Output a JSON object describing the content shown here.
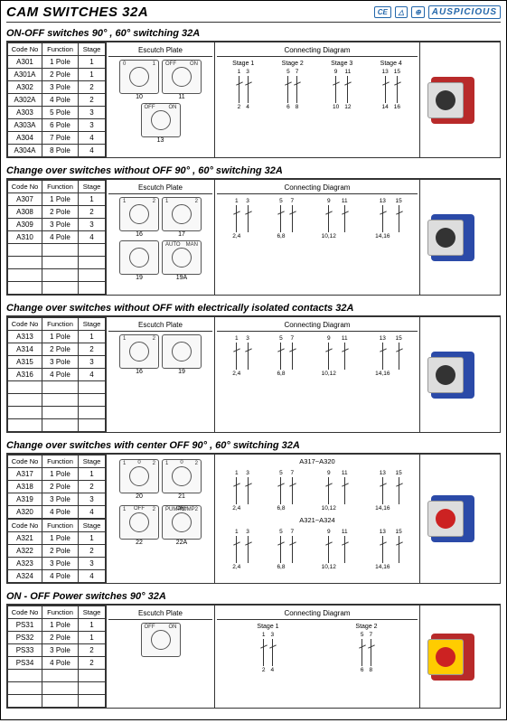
{
  "page_title": "CAM SWITCHES  32A",
  "brand": "AUSPICIOUS",
  "cert_logos": [
    "CE",
    "△",
    "⊕"
  ],
  "column_headers": {
    "code": "Code No",
    "func": "Function",
    "stage": "Stage",
    "escutch": "Escutch Plate",
    "diagram": "Connecting Diagram"
  },
  "colors": {
    "body_blue": "#2b4aa8",
    "body_red": "#b82a2a",
    "face_gray": "#d8d8d8",
    "knob_black": "#222",
    "knob_red": "#c92828",
    "face_yellow": "#ffcc00",
    "brand_blue": "#2266aa"
  },
  "sections": [
    {
      "title": "ON-OFF switches  90° , 60° switching  32A",
      "rows": [
        {
          "code": "A301",
          "func": "1 Pole",
          "stage": "1"
        },
        {
          "code": "A301A",
          "func": "2 Pole",
          "stage": "1"
        },
        {
          "code": "A302",
          "func": "3 Pole",
          "stage": "2"
        },
        {
          "code": "A302A",
          "func": "4 Pole",
          "stage": "2"
        },
        {
          "code": "A303",
          "func": "5 Pole",
          "stage": "3"
        },
        {
          "code": "A303A",
          "func": "6 Pole",
          "stage": "3"
        },
        {
          "code": "A304",
          "func": "7 Pole",
          "stage": "4"
        },
        {
          "code": "A304A",
          "func": "8 Pole",
          "stage": "4"
        }
      ],
      "empty_rows": 0,
      "plates": [
        {
          "num": "10",
          "tl": "0",
          "tr": "1"
        },
        {
          "num": "11",
          "tl": "OFF",
          "tr": "ON"
        },
        {
          "num": "13",
          "tl": "OFF",
          "tr": "ON"
        }
      ],
      "stages": [
        {
          "label": "Stage 1",
          "pins": [
            [
              "1",
              "2"
            ],
            [
              "3",
              "4"
            ]
          ]
        },
        {
          "label": "Stage 2",
          "pins": [
            [
              "5",
              "6"
            ],
            [
              "7",
              "8"
            ]
          ]
        },
        {
          "label": "Stage 3",
          "pins": [
            [
              "9",
              "10"
            ],
            [
              "11",
              "12"
            ]
          ]
        },
        {
          "label": "Stage 4",
          "pins": [
            [
              "13",
              "14"
            ],
            [
              "15",
              "16"
            ]
          ]
        }
      ],
      "photo": {
        "body_color": "#b82a2a",
        "face": "gray",
        "knob": "black"
      }
    },
    {
      "title": "Change over switches without OFF  90° , 60° switching  32A",
      "rows": [
        {
          "code": "A307",
          "func": "1 Pole",
          "stage": "1"
        },
        {
          "code": "A308",
          "func": "2 Pole",
          "stage": "2"
        },
        {
          "code": "A309",
          "func": "3 Pole",
          "stage": "3"
        },
        {
          "code": "A310",
          "func": "4 Pole",
          "stage": "4"
        }
      ],
      "empty_rows": 4,
      "plates": [
        {
          "num": "16",
          "tl": "1",
          "tr": "2"
        },
        {
          "num": "17",
          "tl": "1",
          "tr": "2"
        },
        {
          "num": "19",
          "tl": "",
          "tr": ""
        },
        {
          "num": "19A",
          "tl": "AUTO",
          "tr": "MAN"
        }
      ],
      "stages": [
        {
          "label": "",
          "pins": [
            [
              "1",
              "2,4"
            ],
            [
              "3",
              ""
            ]
          ]
        },
        {
          "label": "",
          "pins": [
            [
              "5",
              "6,8"
            ],
            [
              "7",
              ""
            ]
          ]
        },
        {
          "label": "",
          "pins": [
            [
              "9",
              "10,12"
            ],
            [
              "11",
              ""
            ]
          ]
        },
        {
          "label": "",
          "pins": [
            [
              "13",
              "14,16"
            ],
            [
              "15",
              ""
            ]
          ]
        }
      ],
      "photo": {
        "body_color": "#2b4aa8",
        "face": "gray",
        "knob": "black"
      }
    },
    {
      "title": "Change over switches without OFF with electrically isolated contacts  32A",
      "rows": [
        {
          "code": "A313",
          "func": "1 Pole",
          "stage": "1"
        },
        {
          "code": "A314",
          "func": "2 Pole",
          "stage": "2"
        },
        {
          "code": "A315",
          "func": "3 Pole",
          "stage": "3"
        },
        {
          "code": "A316",
          "func": "4 Pole",
          "stage": "4"
        }
      ],
      "empty_rows": 4,
      "plates": [
        {
          "num": "16",
          "tl": "1",
          "tr": "2"
        },
        {
          "num": "19",
          "tl": "",
          "tr": ""
        }
      ],
      "stages": [
        {
          "label": "",
          "pins": [
            [
              "1",
              "2,4"
            ],
            [
              "3",
              ""
            ]
          ]
        },
        {
          "label": "",
          "pins": [
            [
              "5",
              "6,8"
            ],
            [
              "7",
              ""
            ]
          ]
        },
        {
          "label": "",
          "pins": [
            [
              "9",
              "10,12"
            ],
            [
              "11",
              ""
            ]
          ]
        },
        {
          "label": "",
          "pins": [
            [
              "13",
              "14,16"
            ],
            [
              "15",
              ""
            ]
          ]
        }
      ],
      "photo": {
        "body_color": "#2b4aa8",
        "face": "gray",
        "knob": "black"
      }
    },
    {
      "title": "Change over switches with center OFF  90° , 60°  switching  32A",
      "groups": [
        {
          "rows": [
            {
              "code": "A317",
              "func": "1 Pole",
              "stage": "1"
            },
            {
              "code": "A318",
              "func": "2 Pole",
              "stage": "2"
            },
            {
              "code": "A319",
              "func": "3 Pole",
              "stage": "3"
            },
            {
              "code": "A320",
              "func": "4 Pole",
              "stage": "4"
            }
          ],
          "plates": [
            {
              "num": "20",
              "tl": "1",
              "tc": "0",
              "tr": "2"
            },
            {
              "num": "21",
              "tl": "1",
              "tc": "0",
              "tr": "2"
            }
          ],
          "range": "A317~A320",
          "stages": [
            {
              "label": "",
              "pins": [
                [
                  "1",
                  "2,4"
                ],
                [
                  "3",
                  ""
                ]
              ]
            },
            {
              "label": "",
              "pins": [
                [
                  "5",
                  "6,8"
                ],
                [
                  "7",
                  ""
                ]
              ]
            },
            {
              "label": "",
              "pins": [
                [
                  "9",
                  "10,12"
                ],
                [
                  "11",
                  ""
                ]
              ]
            },
            {
              "label": "",
              "pins": [
                [
                  "13",
                  "14,16"
                ],
                [
                  "15",
                  ""
                ]
              ]
            }
          ]
        },
        {
          "rows": [
            {
              "code": "A321",
              "func": "1 Pole",
              "stage": "1"
            },
            {
              "code": "A322",
              "func": "2 Pole",
              "stage": "2"
            },
            {
              "code": "A323",
              "func": "3 Pole",
              "stage": "3"
            },
            {
              "code": "A324",
              "func": "4 Pole",
              "stage": "4"
            }
          ],
          "plates": [
            {
              "num": "22",
              "tl": "1",
              "tc": "OFF",
              "tr": "2"
            },
            {
              "num": "22A",
              "tl": "PUMP1",
              "tc": "OFF",
              "tr": "PUMP2"
            }
          ],
          "range": "A321~A324",
          "stages": [
            {
              "label": "",
              "pins": [
                [
                  "1",
                  "2,4"
                ],
                [
                  "3",
                  ""
                ]
              ]
            },
            {
              "label": "",
              "pins": [
                [
                  "5",
                  "6,8"
                ],
                [
                  "7",
                  ""
                ]
              ]
            },
            {
              "label": "",
              "pins": [
                [
                  "9",
                  "10,12"
                ],
                [
                  "11",
                  ""
                ]
              ]
            },
            {
              "label": "",
              "pins": [
                [
                  "13",
                  "14,16"
                ],
                [
                  "15",
                  ""
                ]
              ]
            }
          ]
        }
      ],
      "photo": {
        "body_color": "#2b4aa8",
        "face": "gray",
        "knob": "red"
      }
    },
    {
      "title": "ON - OFF  Power switches 90°  32A",
      "rows": [
        {
          "code": "PS31",
          "func": "1 Pole",
          "stage": "1"
        },
        {
          "code": "PS32",
          "func": "2 Pole",
          "stage": "1"
        },
        {
          "code": "PS33",
          "func": "3 Pole",
          "stage": "2"
        },
        {
          "code": "PS34",
          "func": "4 Pole",
          "stage": "2"
        }
      ],
      "empty_rows": 3,
      "plates": [
        {
          "num": "",
          "tl": "OFF",
          "tr": "ON"
        }
      ],
      "stages": [
        {
          "label": "Stage 1",
          "pins": [
            [
              "1",
              "2"
            ],
            [
              "3",
              "4"
            ]
          ]
        },
        {
          "label": "Stage 2",
          "pins": [
            [
              "5",
              "6"
            ],
            [
              "7",
              "8"
            ]
          ]
        }
      ],
      "photo": {
        "body_color": "#b82a2a",
        "face": "yellow",
        "knob": "red"
      }
    }
  ]
}
